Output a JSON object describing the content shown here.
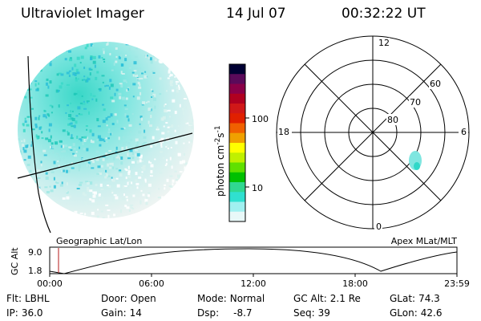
{
  "header": {
    "title": "Ultraviolet Imager",
    "date": "14 Jul 07",
    "time": "00:32:22 UT"
  },
  "colorbar": {
    "ylabel": "photon cm^-2 s^-1",
    "ticks": [
      "100",
      "10"
    ],
    "colors": [
      "#000033",
      "#5a0a5a",
      "#8a0048",
      "#b00020",
      "#d01818",
      "#e02000",
      "#f06000",
      "#f0a000",
      "#ffff00",
      "#c0f000",
      "#60e000",
      "#00c000",
      "#30d890",
      "#30e0d0",
      "#a0f0f0",
      "#e8f8f8"
    ]
  },
  "polar": {
    "hour_labels": {
      "top": "12",
      "left": "18",
      "right": "6",
      "bottom": "0"
    },
    "lat_labels": [
      "60",
      "70",
      "80"
    ]
  },
  "plot": {
    "left_label": "Geographic Lat/Lon",
    "right_label": "Apex MLat/MLT",
    "ylabel": "GC Alt",
    "ytick_top": "9.0",
    "ytick_bottom": "1.8",
    "x_ticks": [
      "00:00",
      "06:00",
      "12:00",
      "18:00",
      "23:59"
    ]
  },
  "footer": {
    "flt_label": "Flt:",
    "flt_value": "LBHL",
    "ip_label": "IP:",
    "ip_value": "36.0",
    "door_label": "Door:",
    "door_value": "Open",
    "gain_label": "Gain:",
    "gain_value": "14",
    "mode_label": "Mode:",
    "mode_value": "Normal",
    "dsp_label": "Dsp:",
    "dsp_value": "-8.7",
    "gcalt_label": "GC Alt:",
    "gcalt_value": "2.1 Re",
    "seq_label": "Seq:",
    "seq_value": "39",
    "glat_label": "GLat:",
    "glat_value": "74.3",
    "glon_label": "GLon:",
    "glon_value": "42.6"
  }
}
